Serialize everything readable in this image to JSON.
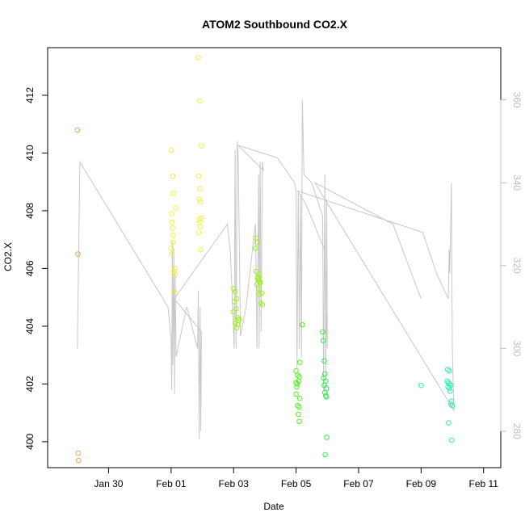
{
  "chart_data": {
    "type": "scatter",
    "title": "ATOM2 Southbound CO2.X",
    "xlabel": "Date",
    "ylabel": "CO2.X",
    "x_unit": "days relative to Feb 01",
    "xlim": [
      -3.95,
      10.55
    ],
    "ylim": [
      399.1,
      413.65
    ],
    "x_ticks": [
      {
        "value": -2,
        "label": "Jan 30"
      },
      {
        "value": 0,
        "label": "Feb 01"
      },
      {
        "value": 2,
        "label": "Feb 03"
      },
      {
        "value": 4,
        "label": "Feb 05"
      },
      {
        "value": 6,
        "label": "Feb 07"
      },
      {
        "value": 8,
        "label": "Feb 09"
      },
      {
        "value": 10,
        "label": "Feb 11"
      }
    ],
    "y_ticks": [
      400,
      402,
      404,
      406,
      408,
      410,
      412
    ],
    "right_axis": {
      "ylim": [
        271.2,
        372.6
      ],
      "ticks": [
        280,
        300,
        320,
        340,
        360
      ],
      "color": "#c0c0c0"
    },
    "series": [
      {
        "color": "#f0a050",
        "points": [
          [
            -3.0,
            410.8
          ],
          [
            -2.98,
            406.5
          ],
          [
            -2.97,
            399.6
          ],
          [
            -2.96,
            399.35
          ]
        ]
      },
      {
        "color": "#f0f040",
        "points": [
          [
            0.0,
            410.1
          ],
          [
            0.05,
            409.2
          ],
          [
            0.08,
            408.6
          ],
          [
            0.02,
            407.9
          ],
          [
            0.03,
            407.6
          ],
          [
            0.05,
            407.4
          ],
          [
            0.07,
            407.15
          ],
          [
            0.0,
            406.7
          ],
          [
            0.03,
            406.5
          ],
          [
            0.06,
            406.9
          ],
          [
            0.12,
            406.0
          ],
          [
            0.14,
            405.8
          ],
          [
            0.1,
            405.2
          ],
          [
            0.15,
            408.1
          ],
          [
            0.09,
            405.9
          ],
          [
            0.87,
            413.3
          ],
          [
            0.92,
            411.8
          ],
          [
            0.97,
            410.25
          ],
          [
            0.88,
            409.2
          ],
          [
            0.92,
            408.75
          ],
          [
            0.9,
            408.4
          ],
          [
            0.94,
            408.3
          ],
          [
            0.92,
            407.6
          ],
          [
            0.97,
            407.75
          ],
          [
            0.93,
            407.45
          ],
          [
            0.88,
            407.25
          ],
          [
            0.9,
            407.7
          ],
          [
            0.95,
            406.65
          ]
        ]
      },
      {
        "color": "#a0f020",
        "points": [
          [
            2.0,
            405.3
          ],
          [
            2.05,
            405.2
          ],
          [
            2.1,
            404.95
          ],
          [
            2.08,
            404.6
          ],
          [
            2.0,
            404.5
          ],
          [
            2.12,
            404.3
          ],
          [
            2.15,
            404.2
          ],
          [
            2.05,
            404.1
          ],
          [
            2.1,
            403.95
          ],
          [
            2.13,
            404.05
          ],
          [
            2.18,
            404.25
          ],
          [
            2.02,
            404.85
          ],
          [
            2.7,
            406.7
          ],
          [
            2.75,
            406.9
          ],
          [
            2.72,
            407.05
          ],
          [
            2.73,
            405.9
          ],
          [
            2.78,
            405.7
          ],
          [
            2.8,
            405.6
          ],
          [
            2.83,
            405.8
          ],
          [
            2.75,
            405.45
          ],
          [
            2.85,
            405.5
          ],
          [
            2.8,
            405.3
          ],
          [
            2.82,
            405.1
          ],
          [
            2.9,
            405.15
          ],
          [
            2.87,
            404.8
          ],
          [
            2.92,
            404.75
          ],
          [
            2.77,
            405.65
          ],
          [
            2.84,
            405.55
          ]
        ]
      },
      {
        "color": "#50f020",
        "points": [
          [
            4.0,
            402.45
          ],
          [
            4.05,
            402.3
          ],
          [
            4.1,
            402.25
          ],
          [
            4.0,
            402.05
          ],
          [
            4.02,
            401.9
          ],
          [
            4.08,
            402.1
          ],
          [
            4.0,
            401.65
          ],
          [
            4.12,
            401.5
          ],
          [
            4.05,
            401.25
          ],
          [
            4.1,
            401.2
          ],
          [
            4.07,
            400.95
          ],
          [
            4.1,
            400.7
          ],
          [
            4.2,
            404.05
          ],
          [
            4.12,
            402.75
          ],
          [
            4.04,
            402.0
          ]
        ]
      },
      {
        "color": "#30f050",
        "points": [
          [
            4.85,
            403.8
          ],
          [
            4.87,
            403.5
          ],
          [
            4.9,
            402.8
          ],
          [
            4.92,
            402.35
          ],
          [
            4.88,
            402.2
          ],
          [
            4.95,
            402.1
          ],
          [
            4.9,
            401.95
          ],
          [
            4.97,
            401.85
          ],
          [
            4.92,
            401.7
          ],
          [
            4.95,
            401.6
          ],
          [
            4.97,
            401.55
          ],
          [
            4.98,
            400.15
          ],
          [
            4.93,
            399.55
          ]
        ]
      },
      {
        "color": "#30f0b0",
        "points": [
          [
            8.0,
            401.95
          ],
          [
            8.85,
            402.5
          ],
          [
            8.9,
            402.45
          ],
          [
            8.83,
            402.1
          ],
          [
            8.87,
            402.05
          ],
          [
            8.92,
            402.0
          ],
          [
            8.95,
            401.95
          ],
          [
            8.9,
            401.85
          ],
          [
            8.93,
            401.75
          ],
          [
            8.97,
            401.4
          ],
          [
            8.95,
            401.3
          ],
          [
            9.0,
            401.25
          ],
          [
            8.88,
            400.65
          ],
          [
            8.98,
            400.05
          ],
          [
            8.86,
            401.9
          ]
        ]
      }
    ],
    "background_trace": {
      "color": "#c8c8c8",
      "axis": "right",
      "points": [
        [
          -3.0,
          300
        ],
        [
          -2.92,
          345
        ],
        [
          -0.1,
          310
        ],
        [
          0.0,
          302
        ],
        [
          0.02,
          290
        ],
        [
          0.04,
          326
        ],
        [
          0.06,
          296
        ],
        [
          0.09,
          324
        ],
        [
          0.11,
          289
        ],
        [
          0.13,
          318
        ],
        [
          0.16,
          298
        ],
        [
          0.5,
          310
        ],
        [
          0.85,
          300
        ],
        [
          0.87,
          314
        ],
        [
          0.9,
          278
        ],
        [
          0.93,
          310
        ],
        [
          0.95,
          280
        ],
        [
          0.97,
          304
        ],
        [
          0.1,
          312
        ],
        [
          1.8,
          330
        ],
        [
          1.9,
          323
        ],
        [
          2.02,
          300
        ],
        [
          2.05,
          348
        ],
        [
          2.08,
          300
        ],
        [
          2.12,
          350
        ],
        [
          2.15,
          346
        ],
        [
          2.22,
          303
        ],
        [
          2.4,
          310
        ],
        [
          2.65,
          327
        ],
        [
          2.7,
          330
        ],
        [
          2.75,
          300
        ],
        [
          2.8,
          342
        ],
        [
          2.82,
          300
        ],
        [
          2.85,
          345
        ],
        [
          2.88,
          304
        ],
        [
          2.92,
          345
        ],
        [
          2.95,
          343
        ],
        [
          2.15,
          349
        ],
        [
          3.4,
          346
        ],
        [
          3.95,
          340
        ],
        [
          4.0,
          338
        ],
        [
          4.03,
          295
        ],
        [
          4.07,
          338
        ],
        [
          4.1,
          300
        ],
        [
          4.14,
          337
        ],
        [
          4.17,
          298
        ],
        [
          4.2,
          360
        ],
        [
          4.25,
          342
        ],
        [
          4.5,
          340
        ],
        [
          4.85,
          332
        ],
        [
          4.88,
          290
        ],
        [
          4.92,
          342
        ],
        [
          4.95,
          290
        ],
        [
          4.98,
          336
        ],
        [
          5.0,
          300
        ],
        [
          4.9,
          324
        ],
        [
          4.3,
          335
        ],
        [
          4.05,
          338
        ],
        [
          8.05,
          328
        ],
        [
          8.5,
          318
        ],
        [
          8.87,
          312
        ],
        [
          8.9,
          324
        ],
        [
          8.92,
          318
        ],
        [
          8.97,
          340
        ],
        [
          9.0,
          300
        ],
        [
          9.05,
          285
        ],
        [
          4.6,
          340
        ],
        [
          7.1,
          330
        ],
        [
          7.4,
          324
        ],
        [
          8.0,
          312
        ]
      ]
    }
  }
}
